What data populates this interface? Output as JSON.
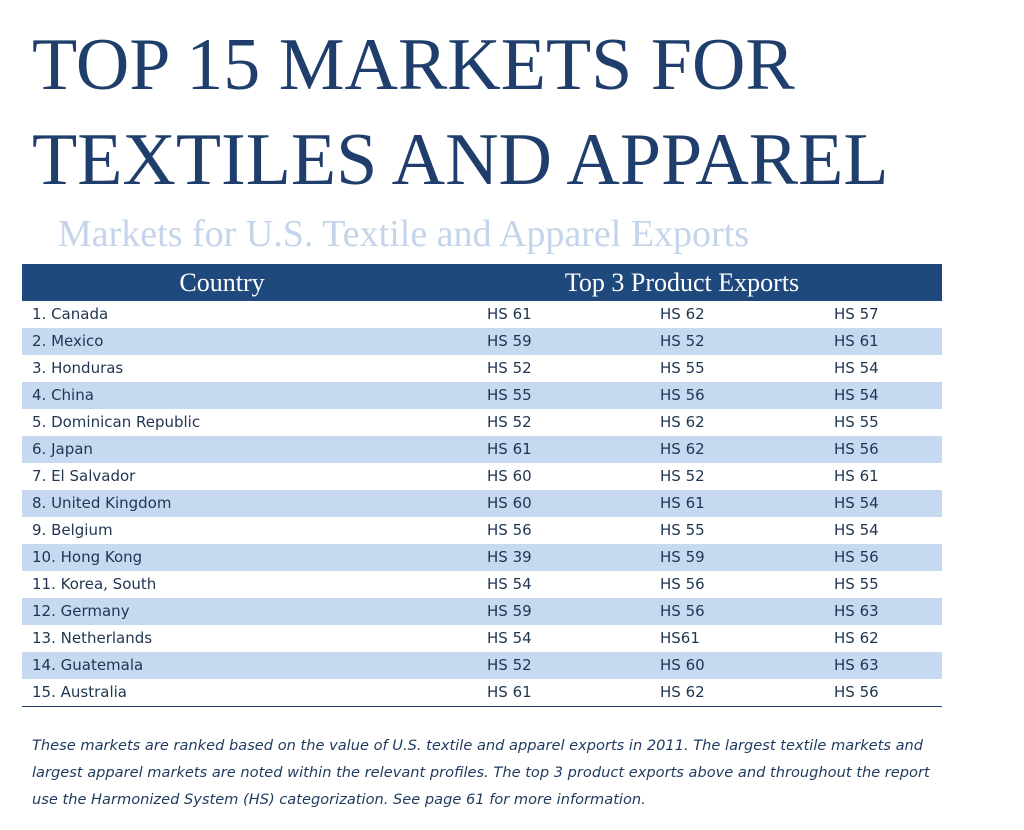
{
  "header": {
    "title_lines": [
      "TOP 15 MARKETS FOR",
      "TEXTILES AND APPAREL"
    ],
    "subtitle": "Markets for U.S. Textile and Apparel Exports"
  },
  "table": {
    "columns": [
      "Country",
      "Top 3 Product Exports"
    ],
    "rows": [
      [
        "1. Canada",
        "HS 61",
        "HS 62",
        "HS 57"
      ],
      [
        "2. Mexico",
        "HS 59",
        "HS 52",
        "HS 61"
      ],
      [
        "3. Honduras",
        "HS 52",
        "HS 55",
        "HS 54"
      ],
      [
        "4. China",
        "HS 55",
        "HS 56",
        "HS 54"
      ],
      [
        "5. Dominican Republic",
        "HS 52",
        "HS 62",
        "HS 55"
      ],
      [
        "6. Japan",
        "HS 61",
        "HS 62",
        "HS 56"
      ],
      [
        "7. El Salvador",
        "HS 60",
        "HS 52",
        "HS 61"
      ],
      [
        "8. United Kingdom",
        "HS 60",
        "HS 61",
        "HS 54"
      ],
      [
        "9. Belgium",
        "HS 56",
        "HS 55",
        "HS 54"
      ],
      [
        "10. Hong Kong",
        "HS 39",
        "HS 59",
        "HS 56"
      ],
      [
        "11. Korea, South",
        "HS 54",
        "HS 56",
        "HS 55"
      ],
      [
        "12. Germany",
        "HS 59",
        "HS 56",
        "HS 63"
      ],
      [
        "13. Netherlands",
        "HS 54",
        "HS61",
        "HS 62"
      ],
      [
        "14. Guatemala",
        "HS 52",
        "HS 60",
        "HS 63"
      ],
      [
        "15. Australia",
        "HS 61",
        "HS 62",
        "HS 56"
      ]
    ]
  },
  "footnote": "These markets are ranked based on the value of U.S. textile and apparel exports in 2011. The largest textile markets and largest apparel markets are noted within the relevant profiles. The top 3 product exports above and throughout the report use the Harmonized System (HS) categorization. See page 61 for more information."
}
